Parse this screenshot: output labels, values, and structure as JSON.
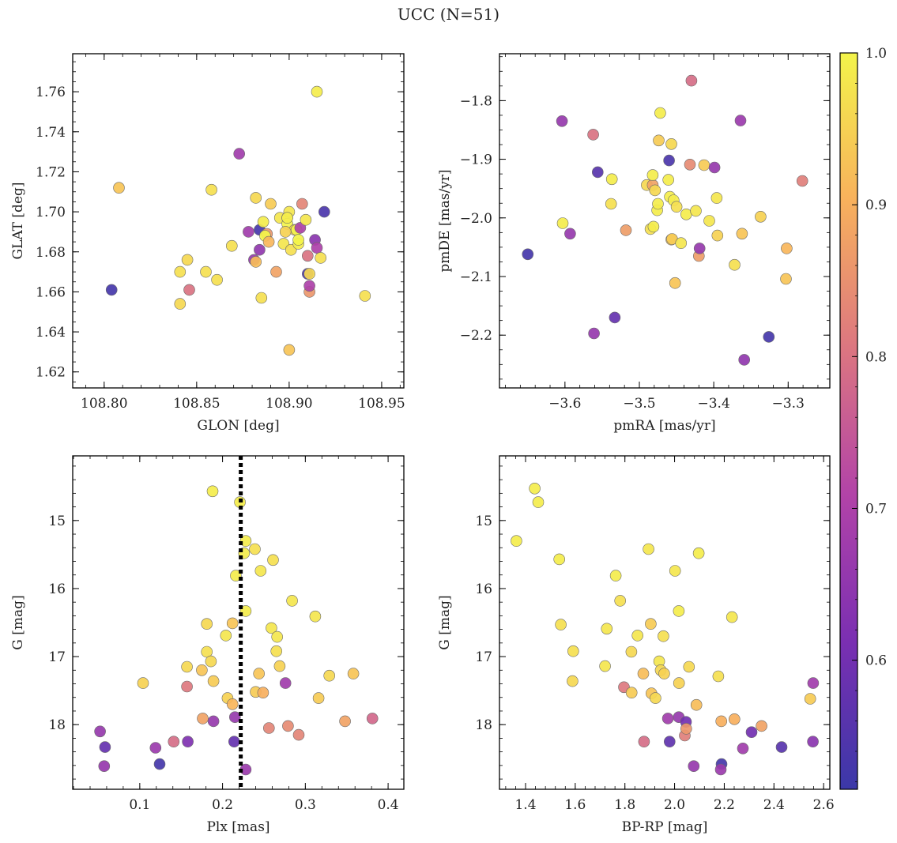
{
  "figure": {
    "title": "UCC (N=51)"
  },
  "colorbar": {
    "ticks": [
      0.6,
      0.7,
      0.8,
      0.9,
      1.0
    ],
    "tick_labels": [
      "0.6",
      "0.7",
      "0.8",
      "0.9",
      "1.0"
    ],
    "range": [
      0.515,
      1.0
    ],
    "colormap": "plasma"
  },
  "chart_data": [
    {
      "type": "scatter",
      "xlabel": "GLON [deg]",
      "ylabel": "GLAT [deg]",
      "xlim": [
        108.783,
        108.962
      ],
      "ylim": [
        1.612,
        1.779
      ],
      "xticks": [
        108.8,
        108.85,
        108.9,
        108.95
      ],
      "xtick_labels": [
        "108.80",
        "108.85",
        "108.90",
        "108.95"
      ],
      "yticks": [
        1.62,
        1.64,
        1.66,
        1.68,
        1.7,
        1.72,
        1.74,
        1.76
      ],
      "ytick_labels": [
        "1.62",
        "1.64",
        "1.66",
        "1.68",
        "1.70",
        "1.72",
        "1.74",
        "1.76"
      ],
      "y_inverted": false,
      "points": [
        [
          108.804,
          1.661,
          0.53
        ],
        [
          108.808,
          1.712,
          0.93
        ],
        [
          108.841,
          1.67,
          0.97
        ],
        [
          108.841,
          1.654,
          0.96
        ],
        [
          108.845,
          1.676,
          0.96
        ],
        [
          108.846,
          1.661,
          0.8
        ],
        [
          108.855,
          1.67,
          0.97
        ],
        [
          108.858,
          1.711,
          0.97
        ],
        [
          108.861,
          1.666,
          0.97
        ],
        [
          108.869,
          1.683,
          0.97
        ],
        [
          108.873,
          1.729,
          0.68
        ],
        [
          108.878,
          1.69,
          0.68
        ],
        [
          108.881,
          1.676,
          0.66
        ],
        [
          108.882,
          1.675,
          0.92
        ],
        [
          108.882,
          1.707,
          0.96
        ],
        [
          108.884,
          1.691,
          0.53
        ],
        [
          108.884,
          1.681,
          0.65
        ],
        [
          108.885,
          1.657,
          0.97
        ],
        [
          108.886,
          1.695,
          0.99
        ],
        [
          108.888,
          1.689,
          0.86
        ],
        [
          108.887,
          1.688,
          1.0
        ],
        [
          108.889,
          1.685,
          0.91
        ],
        [
          108.89,
          1.704,
          0.94
        ],
        [
          108.893,
          1.67,
          0.88
        ],
        [
          108.895,
          1.697,
          0.98
        ],
        [
          108.897,
          1.684,
          0.98
        ],
        [
          108.899,
          1.697,
          1.0
        ],
        [
          108.899,
          1.694,
          1.0
        ],
        [
          108.9,
          1.7,
          0.98
        ],
        [
          108.899,
          1.697,
          0.99
        ],
        [
          108.9,
          1.631,
          0.93
        ],
        [
          108.901,
          1.681,
          0.97
        ],
        [
          108.903,
          1.691,
          0.94
        ],
        [
          108.904,
          1.691,
          1.0
        ],
        [
          108.905,
          1.684,
          0.99
        ],
        [
          108.905,
          1.686,
          1.0
        ],
        [
          108.906,
          1.692,
          0.7
        ],
        [
          108.907,
          1.704,
          0.83
        ],
        [
          108.909,
          1.696,
          0.98
        ],
        [
          108.91,
          1.669,
          0.54
        ],
        [
          108.91,
          1.678,
          0.8
        ],
        [
          108.911,
          1.66,
          0.86
        ],
        [
          108.911,
          1.663,
          0.7
        ],
        [
          108.911,
          1.669,
          0.96
        ],
        [
          108.914,
          1.686,
          0.64
        ],
        [
          108.915,
          1.682,
          0.7
        ],
        [
          108.917,
          1.677,
          0.97
        ],
        [
          108.919,
          1.7,
          0.54
        ],
        [
          108.915,
          1.76,
          0.99
        ],
        [
          108.941,
          1.658,
          0.97
        ],
        [
          108.898,
          1.69,
          0.95
        ]
      ]
    },
    {
      "type": "scatter",
      "xlabel": "pmRA [mas/yr]",
      "ylabel": "pmDE [mas/yr]",
      "xlim": [
        -3.688,
        -3.244
      ],
      "ylim": [
        -2.29,
        -1.72
      ],
      "xticks": [
        -3.6,
        -3.5,
        -3.4,
        -3.3
      ],
      "xtick_labels": [
        "−3.6",
        "−3.5",
        "−3.4",
        "−3.3"
      ],
      "yticks": [
        -2.2,
        -2.1,
        -2.0,
        -1.9,
        -1.8
      ],
      "ytick_labels": [
        "−2.2",
        "−2.1",
        "−2.0",
        "−1.9",
        "−1.8"
      ],
      "y_inverted": false,
      "points": [
        [
          -3.65,
          -2.062,
          0.53
        ],
        [
          -3.604,
          -1.835,
          0.66
        ],
        [
          -3.603,
          -2.009,
          0.99
        ],
        [
          -3.593,
          -2.027,
          0.66
        ],
        [
          -3.562,
          -1.858,
          0.8
        ],
        [
          -3.561,
          -2.197,
          0.66
        ],
        [
          -3.556,
          -1.922,
          0.56
        ],
        [
          -3.537,
          -1.934,
          0.99
        ],
        [
          -3.538,
          -1.976,
          0.97
        ],
        [
          -3.533,
          -2.17,
          0.58
        ],
        [
          -3.518,
          -2.021,
          0.87
        ],
        [
          -3.49,
          -1.944,
          0.96
        ],
        [
          -3.485,
          -2.019,
          0.97
        ],
        [
          -3.482,
          -1.944,
          0.88
        ],
        [
          -3.482,
          -1.927,
          0.99
        ],
        [
          -3.481,
          -2.015,
          0.99
        ],
        [
          -3.479,
          -1.953,
          0.96
        ],
        [
          -3.476,
          -1.987,
          0.99
        ],
        [
          -3.475,
          -1.976,
          0.99
        ],
        [
          -3.474,
          -1.868,
          0.94
        ],
        [
          -3.472,
          -1.821,
          0.99
        ],
        [
          -3.46,
          -1.902,
          0.54
        ],
        [
          -3.461,
          -1.935,
          0.99
        ],
        [
          -3.459,
          -1.964,
          0.99
        ],
        [
          -3.457,
          -1.874,
          0.96
        ],
        [
          -3.457,
          -2.037,
          0.93
        ],
        [
          -3.454,
          -1.97,
          0.99
        ],
        [
          -3.456,
          -2.036,
          0.94
        ],
        [
          -3.452,
          -2.111,
          0.93
        ],
        [
          -3.45,
          -1.981,
          0.97
        ],
        [
          -3.444,
          -2.043,
          0.98
        ],
        [
          -3.437,
          -1.994,
          0.99
        ],
        [
          -3.432,
          -1.909,
          0.84
        ],
        [
          -3.43,
          -1.766,
          0.79
        ],
        [
          -3.424,
          -1.988,
          0.98
        ],
        [
          -3.42,
          -2.065,
          0.87
        ],
        [
          -3.419,
          -2.052,
          0.66
        ],
        [
          -3.413,
          -1.91,
          0.94
        ],
        [
          -3.406,
          -2.005,
          0.98
        ],
        [
          -3.399,
          -1.914,
          0.66
        ],
        [
          -3.396,
          -1.966,
          0.98
        ],
        [
          -3.395,
          -2.03,
          0.95
        ],
        [
          -3.372,
          -2.08,
          0.97
        ],
        [
          -3.364,
          -1.834,
          0.67
        ],
        [
          -3.362,
          -2.027,
          0.93
        ],
        [
          -3.359,
          -2.242,
          0.65
        ],
        [
          -3.326,
          -2.203,
          0.53
        ],
        [
          -3.337,
          -1.998,
          0.95
        ],
        [
          -3.302,
          -2.052,
          0.91
        ],
        [
          -3.303,
          -2.104,
          0.93
        ],
        [
          -3.281,
          -1.937,
          0.82
        ]
      ]
    },
    {
      "type": "scatter",
      "xlabel": "Plx [mas]",
      "ylabel": "G [mag]",
      "xlim": [
        0.019,
        0.419
      ],
      "ylim": [
        18.95,
        14.05
      ],
      "xticks": [
        0.1,
        0.2,
        0.3,
        0.4
      ],
      "xtick_labels": [
        "0.1",
        "0.2",
        "0.3",
        "0.4"
      ],
      "yticks": [
        15,
        16,
        17,
        18
      ],
      "ytick_labels": [
        "15",
        "16",
        "17",
        "18"
      ],
      "y_inverted": true,
      "vline": {
        "x": 0.222,
        "style": "dotted"
      },
      "points": [
        [
          0.052,
          18.1,
          0.66
        ],
        [
          0.058,
          18.33,
          0.58
        ],
        [
          0.057,
          18.61,
          0.66
        ],
        [
          0.104,
          17.39,
          0.95
        ],
        [
          0.119,
          18.34,
          0.67
        ],
        [
          0.124,
          18.58,
          0.53
        ],
        [
          0.141,
          18.25,
          0.79
        ],
        [
          0.157,
          17.44,
          0.81
        ],
        [
          0.157,
          17.15,
          0.96
        ],
        [
          0.158,
          18.25,
          0.62
        ],
        [
          0.175,
          17.2,
          0.93
        ],
        [
          0.176,
          17.91,
          0.88
        ],
        [
          0.181,
          16.52,
          0.96
        ],
        [
          0.181,
          16.93,
          0.97
        ],
        [
          0.186,
          17.07,
          0.96
        ],
        [
          0.188,
          14.57,
          0.99
        ],
        [
          0.189,
          17.36,
          0.94
        ],
        [
          0.189,
          17.95,
          0.66
        ],
        [
          0.204,
          16.69,
          0.98
        ],
        [
          0.206,
          17.61,
          0.95
        ],
        [
          0.212,
          17.7,
          0.91
        ],
        [
          0.212,
          16.51,
          0.93
        ],
        [
          0.214,
          18.25,
          0.58
        ],
        [
          0.215,
          17.89,
          0.66
        ],
        [
          0.216,
          15.81,
          0.99
        ],
        [
          0.221,
          14.73,
          0.99
        ],
        [
          0.226,
          15.48,
          0.99
        ],
        [
          0.228,
          15.3,
          0.99
        ],
        [
          0.228,
          16.33,
          0.99
        ],
        [
          0.228,
          18.66,
          0.67
        ],
        [
          0.239,
          15.42,
          0.97
        ],
        [
          0.24,
          17.52,
          0.94
        ],
        [
          0.244,
          17.25,
          0.93
        ],
        [
          0.246,
          15.74,
          0.98
        ],
        [
          0.249,
          17.53,
          0.9
        ],
        [
          0.256,
          18.05,
          0.83
        ],
        [
          0.259,
          16.58,
          0.98
        ],
        [
          0.261,
          15.58,
          0.97
        ],
        [
          0.266,
          16.71,
          0.98
        ],
        [
          0.265,
          16.92,
          0.97
        ],
        [
          0.269,
          17.14,
          0.95
        ],
        [
          0.276,
          17.39,
          0.68
        ],
        [
          0.279,
          18.02,
          0.84
        ],
        [
          0.284,
          16.18,
          0.98
        ],
        [
          0.292,
          18.15,
          0.83
        ],
        [
          0.312,
          16.41,
          0.98
        ],
        [
          0.316,
          17.61,
          0.94
        ],
        [
          0.329,
          17.28,
          0.96
        ],
        [
          0.348,
          17.95,
          0.88
        ],
        [
          0.358,
          17.25,
          0.93
        ],
        [
          0.381,
          17.91,
          0.78
        ]
      ]
    },
    {
      "type": "scatter",
      "xlabel": "BP-RP [mag]",
      "ylabel": "G [mag]",
      "xlim": [
        1.295,
        2.625
      ],
      "ylim": [
        18.95,
        14.05
      ],
      "xticks": [
        1.4,
        1.6,
        1.8,
        2.0,
        2.2,
        2.4,
        2.6
      ],
      "xtick_labels": [
        "1.4",
        "1.6",
        "1.8",
        "2.0",
        "2.2",
        "2.4",
        "2.6"
      ],
      "yticks": [
        15,
        16,
        17,
        18
      ],
      "ytick_labels": [
        "15",
        "16",
        "17",
        "18"
      ],
      "y_inverted": true,
      "points": [
        [
          1.363,
          15.3,
          0.99
        ],
        [
          1.437,
          14.53,
          0.99
        ],
        [
          1.451,
          14.73,
          0.99
        ],
        [
          1.536,
          15.57,
          0.99
        ],
        [
          1.542,
          16.53,
          0.97
        ],
        [
          1.589,
          17.36,
          0.96
        ],
        [
          1.592,
          16.92,
          0.97
        ],
        [
          1.72,
          17.14,
          0.98
        ],
        [
          1.727,
          16.59,
          0.98
        ],
        [
          1.763,
          15.81,
          0.99
        ],
        [
          1.781,
          16.18,
          0.97
        ],
        [
          1.796,
          17.45,
          0.81
        ],
        [
          1.826,
          16.93,
          0.96
        ],
        [
          1.827,
          17.53,
          0.94
        ],
        [
          1.851,
          16.69,
          0.98
        ],
        [
          1.874,
          17.25,
          0.92
        ],
        [
          1.877,
          18.25,
          0.79
        ],
        [
          1.895,
          15.42,
          0.98
        ],
        [
          1.904,
          16.52,
          0.94
        ],
        [
          1.907,
          17.54,
          0.93
        ],
        [
          1.923,
          17.61,
          0.96
        ],
        [
          1.938,
          17.07,
          0.98
        ],
        [
          1.944,
          17.2,
          0.96
        ],
        [
          1.955,
          16.7,
          0.97
        ],
        [
          1.958,
          17.25,
          0.95
        ],
        [
          1.973,
          17.91,
          0.68
        ],
        [
          1.98,
          18.25,
          0.57
        ],
        [
          2.002,
          15.74,
          0.98
        ],
        [
          2.017,
          17.89,
          0.66
        ],
        [
          2.017,
          16.33,
          0.99
        ],
        [
          2.018,
          17.39,
          0.95
        ],
        [
          2.041,
          18.16,
          0.82
        ],
        [
          2.046,
          17.96,
          0.6
        ],
        [
          2.047,
          18.06,
          0.86
        ],
        [
          2.058,
          17.15,
          0.96
        ],
        [
          2.077,
          18.61,
          0.66
        ],
        [
          2.088,
          17.71,
          0.92
        ],
        [
          2.097,
          15.48,
          0.99
        ],
        [
          2.176,
          17.29,
          0.97
        ],
        [
          2.188,
          17.95,
          0.9
        ],
        [
          2.189,
          18.58,
          0.53
        ],
        [
          2.186,
          18.66,
          0.67
        ],
        [
          2.231,
          16.42,
          0.98
        ],
        [
          2.241,
          17.92,
          0.9
        ],
        [
          2.275,
          18.35,
          0.68
        ],
        [
          2.31,
          18.11,
          0.6
        ],
        [
          2.35,
          18.02,
          0.88
        ],
        [
          2.431,
          18.33,
          0.56
        ],
        [
          2.546,
          17.62,
          0.94
        ],
        [
          2.557,
          18.25,
          0.64
        ],
        [
          2.558,
          17.39,
          0.68
        ]
      ]
    }
  ]
}
